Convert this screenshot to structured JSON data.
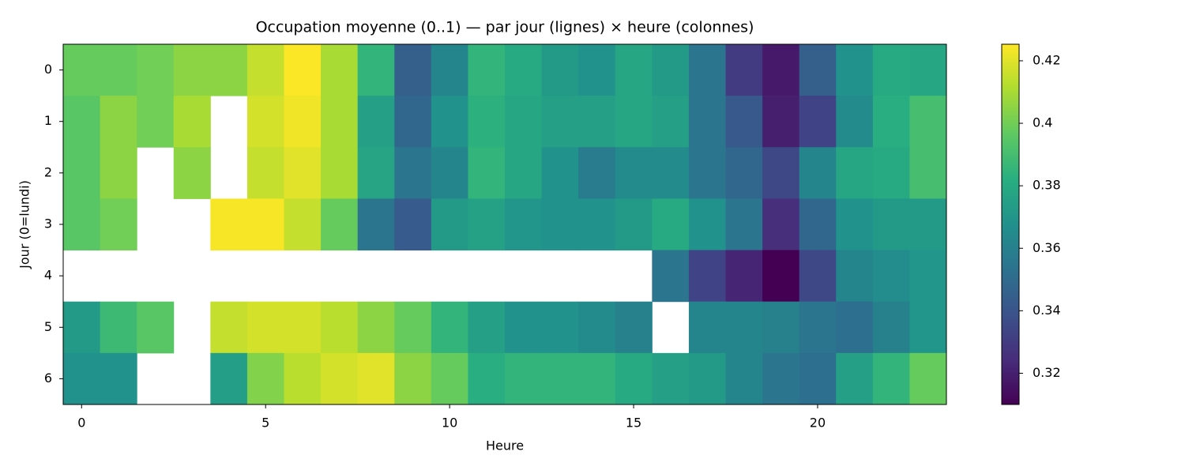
{
  "chart_data": {
    "type": "heatmap",
    "title": "Occupation moyenne (0..1) — par jour (lignes) × heure (colonnes)",
    "x_label": "Heure",
    "y_label": "Jour (0=lundi)",
    "colormap": "viridis",
    "x": [
      0,
      1,
      2,
      3,
      4,
      5,
      6,
      7,
      8,
      9,
      10,
      11,
      12,
      13,
      14,
      15,
      16,
      17,
      18,
      19,
      20,
      21,
      22,
      23
    ],
    "y": [
      0,
      1,
      2,
      3,
      4,
      5,
      6
    ],
    "xlim": [
      -0.5,
      23.5
    ],
    "xticks": [
      0,
      5,
      10,
      15,
      20
    ],
    "ylim": [
      6.5,
      -0.5
    ],
    "yticks": [
      0,
      1,
      2,
      3,
      4,
      5,
      6
    ],
    "clim": [
      0.31,
      0.4253
    ],
    "cticks": [
      0.32,
      0.34,
      0.36,
      0.38,
      0.4,
      0.42
    ],
    "values": [
      [
        0.398,
        0.398,
        0.4,
        0.405,
        0.405,
        0.415,
        0.425,
        0.41,
        0.385,
        0.345,
        0.362,
        0.385,
        0.38,
        0.372,
        0.368,
        0.378,
        0.372,
        0.355,
        0.33,
        0.318,
        0.345,
        0.368,
        0.38,
        0.378
      ],
      [
        0.395,
        0.405,
        0.4,
        0.41,
        null,
        0.418,
        0.423,
        0.41,
        0.375,
        0.348,
        0.368,
        0.383,
        0.378,
        0.375,
        0.375,
        0.378,
        0.375,
        0.355,
        0.342,
        0.32,
        0.333,
        0.365,
        0.382,
        0.39
      ],
      [
        0.395,
        0.405,
        null,
        0.405,
        null,
        0.415,
        0.42,
        0.41,
        0.377,
        0.355,
        0.362,
        0.385,
        0.378,
        0.368,
        0.358,
        0.365,
        0.365,
        0.355,
        0.348,
        0.335,
        0.362,
        0.378,
        0.38,
        0.39
      ],
      [
        0.395,
        0.4,
        null,
        null,
        0.424,
        0.424,
        0.415,
        0.398,
        0.355,
        0.343,
        0.372,
        0.376,
        0.37,
        0.368,
        0.368,
        0.372,
        0.38,
        0.368,
        0.355,
        0.325,
        0.348,
        0.368,
        0.372,
        0.372
      ],
      [
        null,
        null,
        null,
        null,
        null,
        null,
        null,
        null,
        null,
        null,
        null,
        null,
        null,
        null,
        null,
        null,
        0.355,
        0.333,
        0.322,
        0.31,
        0.335,
        0.362,
        0.366,
        0.37
      ],
      [
        0.372,
        0.388,
        0.395,
        null,
        0.415,
        0.418,
        0.418,
        0.413,
        0.405,
        0.398,
        0.385,
        0.375,
        0.368,
        0.368,
        0.365,
        0.36,
        null,
        0.362,
        0.362,
        0.36,
        0.355,
        0.352,
        0.36,
        0.37
      ],
      [
        0.368,
        0.368,
        null,
        null,
        0.374,
        0.403,
        0.413,
        0.418,
        0.42,
        0.405,
        0.398,
        0.382,
        0.385,
        0.385,
        0.385,
        0.38,
        0.375,
        0.372,
        0.362,
        0.355,
        0.352,
        0.375,
        0.385,
        0.398
      ]
    ]
  }
}
